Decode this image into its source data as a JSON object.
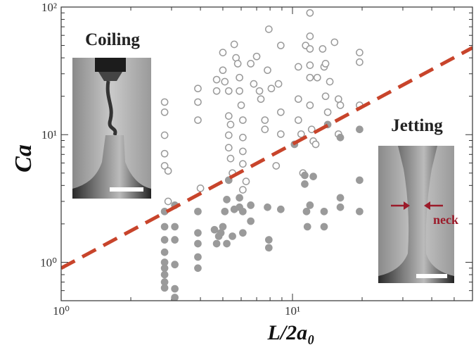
{
  "chart_data": {
    "type": "scatter",
    "xlabel": "L/2a₀",
    "ylabel": "Ca",
    "xscale": "log",
    "yscale": "log",
    "xlim": [
      1,
      60
    ],
    "ylim": [
      0.5,
      100
    ],
    "xticks": [
      {
        "value": 1,
        "label": "10⁰"
      },
      {
        "value": 10,
        "label": "10¹"
      }
    ],
    "yticks": [
      {
        "value": 1,
        "label": "10⁰"
      },
      {
        "value": 10,
        "label": "10¹"
      },
      {
        "value": 100,
        "label": "10²"
      }
    ],
    "xminorticks": [
      2,
      3,
      4,
      5,
      6,
      7,
      8,
      9,
      20,
      30,
      40,
      50,
      60
    ],
    "yminorticks": [
      0.5,
      0.6,
      0.7,
      0.8,
      0.9,
      2,
      3,
      4,
      5,
      6,
      7,
      8,
      9,
      20,
      30,
      40,
      50,
      60,
      70,
      80,
      90
    ],
    "annotations": {
      "coiling": "Coiling",
      "jetting": "Jetting",
      "neck": "neck"
    },
    "series": [
      {
        "marker": "open",
        "color": "#9a9a9a",
        "x": [
          2.8,
          2.8,
          2.8,
          2.8,
          2.8,
          2.9,
          2.9,
          3.9,
          3.9,
          3.9,
          4.0,
          4.7,
          4.7,
          5.0,
          5.0,
          5.1,
          5.3,
          5.3,
          5.4,
          5.3,
          5.3,
          5.4,
          5.5,
          5.6,
          5.7,
          5.8,
          5.9,
          5.9,
          6.0,
          6.1,
          6.1,
          6.1,
          6.1,
          6.3,
          6.1,
          6.6,
          6.8,
          7.0,
          7.2,
          7.3,
          7.6,
          7.6,
          7.8,
          7.9,
          8.1,
          8.5,
          8.7,
          8.9,
          8.9,
          8.9,
          10.6,
          10.6,
          10.6,
          10.9,
          11.1,
          11.4,
          11.9,
          11.9,
          11.9,
          11.9,
          11.9,
          11.9,
          12.1,
          12.3,
          12.6,
          12.8,
          13.5,
          13.7,
          13.9,
          13.9,
          14.2,
          14.5,
          15.2,
          15.8,
          15.8,
          16.1,
          19.5,
          19.5,
          19.5
        ],
        "values": [
          18,
          15,
          9.9,
          7.1,
          5.7,
          5.2,
          3.0,
          23,
          18,
          13,
          3.8,
          27,
          22,
          44,
          32,
          26,
          22,
          14,
          12,
          9.9,
          7.9,
          6.5,
          5.0,
          51,
          40,
          36,
          28,
          22,
          17,
          13,
          9.5,
          7.4,
          5.9,
          4.3,
          3.7,
          36,
          25,
          41,
          22,
          19,
          13,
          11,
          32,
          67,
          23,
          5.7,
          25,
          15,
          10.1,
          50,
          34,
          19,
          13,
          10.1,
          5.0,
          50,
          90,
          59,
          47,
          35,
          28,
          17,
          11,
          8.9,
          8.4,
          28,
          47,
          34,
          36,
          20,
          15,
          26,
          53,
          19,
          10.1,
          17,
          44,
          37,
          17
        ]
      },
      {
        "marker": "filled",
        "color": "#9a9a9a",
        "x": [
          2.8,
          2.8,
          2.8,
          2.8,
          2.8,
          2.8,
          2.8,
          2.8,
          2.8,
          3.1,
          3.1,
          3.1,
          3.1,
          3.1,
          3.1,
          3.9,
          3.9,
          3.9,
          3.9,
          3.9,
          4.6,
          4.7,
          4.8,
          4.9,
          5.0,
          5.1,
          5.2,
          5.2,
          5.3,
          5.5,
          5.6,
          5.9,
          5.9,
          6.1,
          6.1,
          6.6,
          6.6,
          7.8,
          7.9,
          7.9,
          8.9,
          10.2,
          11.3,
          11.3,
          11.5,
          11.6,
          11.9,
          12.3,
          13.7,
          13.7,
          14.2,
          16.1,
          16.1,
          16.1,
          19.5,
          19.5,
          19.5
        ],
        "values": [
          1.9,
          1.5,
          1.2,
          1.0,
          0.9,
          0.8,
          0.7,
          0.63,
          2.5,
          2.8,
          1.9,
          1.5,
          0.96,
          0.62,
          0.53,
          2.5,
          1.7,
          1.4,
          1.1,
          0.9,
          1.8,
          1.4,
          1.6,
          1.7,
          1.9,
          2.5,
          3.1,
          1.4,
          4.4,
          1.6,
          2.6,
          3.2,
          2.7,
          1.7,
          2.5,
          2.8,
          2.1,
          2.7,
          1.5,
          1.3,
          2.6,
          8.4,
          4.8,
          4.1,
          2.5,
          1.9,
          2.8,
          4.7,
          2.5,
          1.9,
          12,
          9.5,
          3.2,
          2.7,
          11,
          4.4,
          2.5
        ]
      },
      {
        "type": "line",
        "style": "dashed",
        "color": "#c8442b",
        "x": [
          1,
          60
        ],
        "values": [
          0.9,
          48
        ]
      }
    ]
  }
}
